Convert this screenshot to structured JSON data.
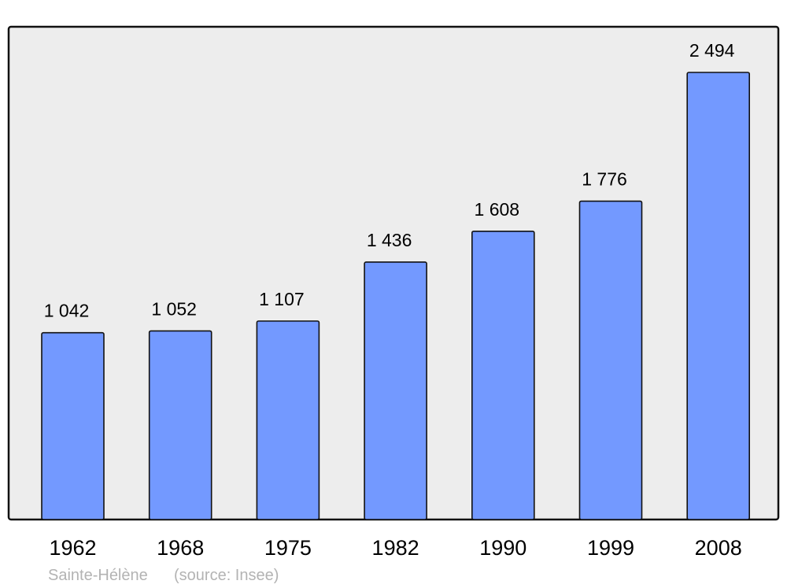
{
  "chart_data": {
    "type": "bar",
    "categories": [
      "1962",
      "1968",
      "1975",
      "1982",
      "1990",
      "1999",
      "2008"
    ],
    "values": [
      1042,
      1052,
      1107,
      1436,
      1608,
      1776,
      2494
    ],
    "value_labels": [
      "1 042",
      "1 052",
      "1 107",
      "1 436",
      "1 608",
      "1 776",
      "2 494"
    ],
    "title": "",
    "xlabel": "",
    "ylabel": "",
    "ylim": [
      0,
      2494
    ],
    "grid": false,
    "bar_color": "#7399ff",
    "plot_background": "#ededed"
  },
  "footer": {
    "place": "Sainte-Hélène",
    "source": "(source: Insee)"
  }
}
